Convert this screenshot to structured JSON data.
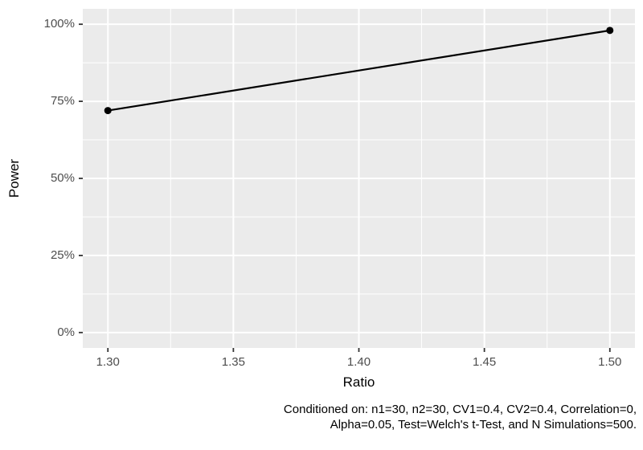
{
  "chart_data": {
    "type": "line",
    "title": "",
    "xlabel": "Ratio",
    "ylabel": "Power",
    "x": [
      1.3,
      1.5
    ],
    "series": [
      {
        "name": "Power",
        "values_percent": [
          72,
          98
        ]
      }
    ],
    "x_ticks": [
      {
        "v": 1.3,
        "label": "1.30"
      },
      {
        "v": 1.35,
        "label": "1.35"
      },
      {
        "v": 1.4,
        "label": "1.40"
      },
      {
        "v": 1.45,
        "label": "1.45"
      },
      {
        "v": 1.5,
        "label": "1.50"
      }
    ],
    "y_ticks": [
      {
        "v": 0,
        "label": "0%"
      },
      {
        "v": 25,
        "label": "25%"
      },
      {
        "v": 50,
        "label": "50%"
      },
      {
        "v": 75,
        "label": "75%"
      },
      {
        "v": 100,
        "label": "100%"
      }
    ],
    "xlim": [
      1.29,
      1.51
    ],
    "ylim_percent": [
      -5,
      105
    ],
    "grid": {
      "major": true,
      "minor": true
    },
    "legend": "none",
    "styles": {
      "panel_bg": "#EBEBEB",
      "grid_color": "#FFFFFF",
      "tick_mark_color": "#333333",
      "tick_label_color": "#4D4D4D",
      "line_color": "#000000",
      "point_color": "#000000",
      "point_radius": 4.5,
      "line_width": 2.2
    }
  },
  "caption": {
    "line1": "Conditioned on: n1=30, n2=30, CV1=0.4, CV2=0.4, Correlation=0,",
    "line2": "Alpha=0.05, Test=Welch's t-Test, and N Simulations=500."
  }
}
